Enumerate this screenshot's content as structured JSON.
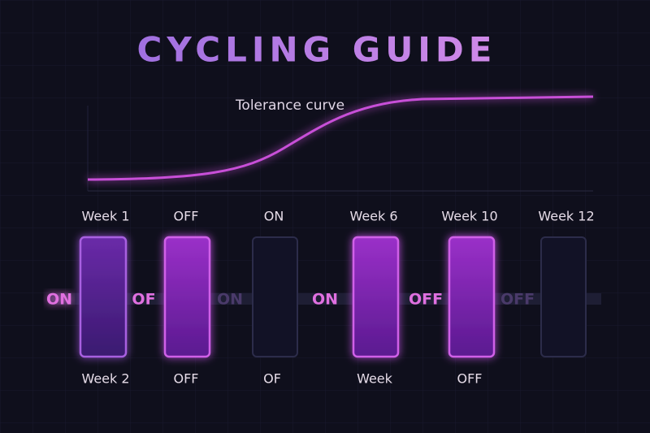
{
  "header": {
    "title": "CYCLING GUIDE"
  },
  "curve": {
    "label": "Tolerance curve"
  },
  "top_labels": [
    "Week 1",
    "OFF",
    "ON",
    "Week 6",
    "Week 10",
    "Week 12"
  ],
  "side_labels": [
    "ON",
    "OF",
    "ON",
    "ON",
    "OFF",
    "OFF"
  ],
  "bottom_labels": [
    "Week 2",
    "OFF",
    "OF",
    "Week",
    "OFF"
  ]
}
